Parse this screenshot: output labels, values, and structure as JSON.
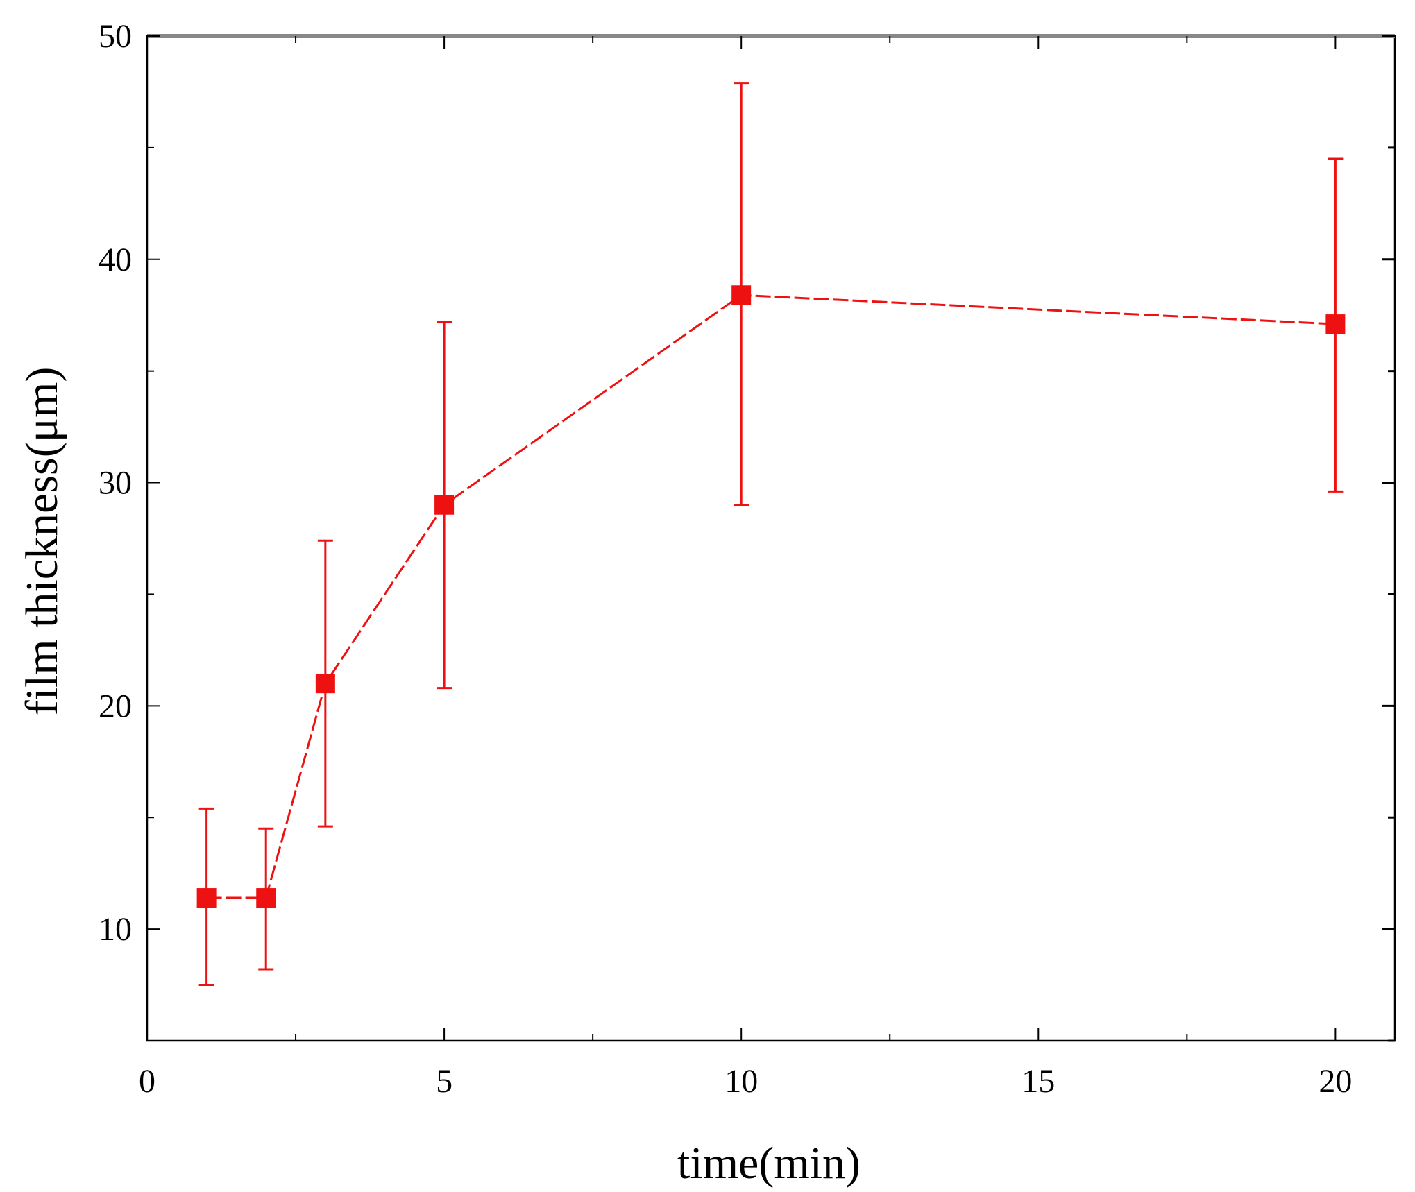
{
  "chart_data": {
    "type": "scatter",
    "title": "",
    "xlabel": "time(min)",
    "ylabel": "film thickness(μm)",
    "xlim": [
      0,
      21
    ],
    "ylim": [
      5,
      50
    ],
    "x_ticks": [
      0,
      5,
      10,
      15,
      20
    ],
    "x_minor_step": 2.5,
    "y_ticks": [
      10,
      20,
      30,
      40,
      50
    ],
    "y_minor_step": 5,
    "grid": false,
    "legend": "none",
    "color": "#ee1111",
    "marker": "square",
    "connect": "dashed-line",
    "series": [
      {
        "points": [
          {
            "x": 1,
            "y": 11.4,
            "err_low": 7.5,
            "err_high": 15.4
          },
          {
            "x": 2,
            "y": 11.4,
            "err_low": 8.2,
            "err_high": 14.5
          },
          {
            "x": 3,
            "y": 21.0,
            "err_low": 14.6,
            "err_high": 27.4
          },
          {
            "x": 5,
            "y": 29.0,
            "err_low": 20.8,
            "err_high": 37.2
          },
          {
            "x": 10,
            "y": 38.4,
            "err_low": 29.0,
            "err_high": 47.9
          },
          {
            "x": 20,
            "y": 37.1,
            "err_low": 29.6,
            "err_high": 44.5
          }
        ]
      }
    ]
  }
}
